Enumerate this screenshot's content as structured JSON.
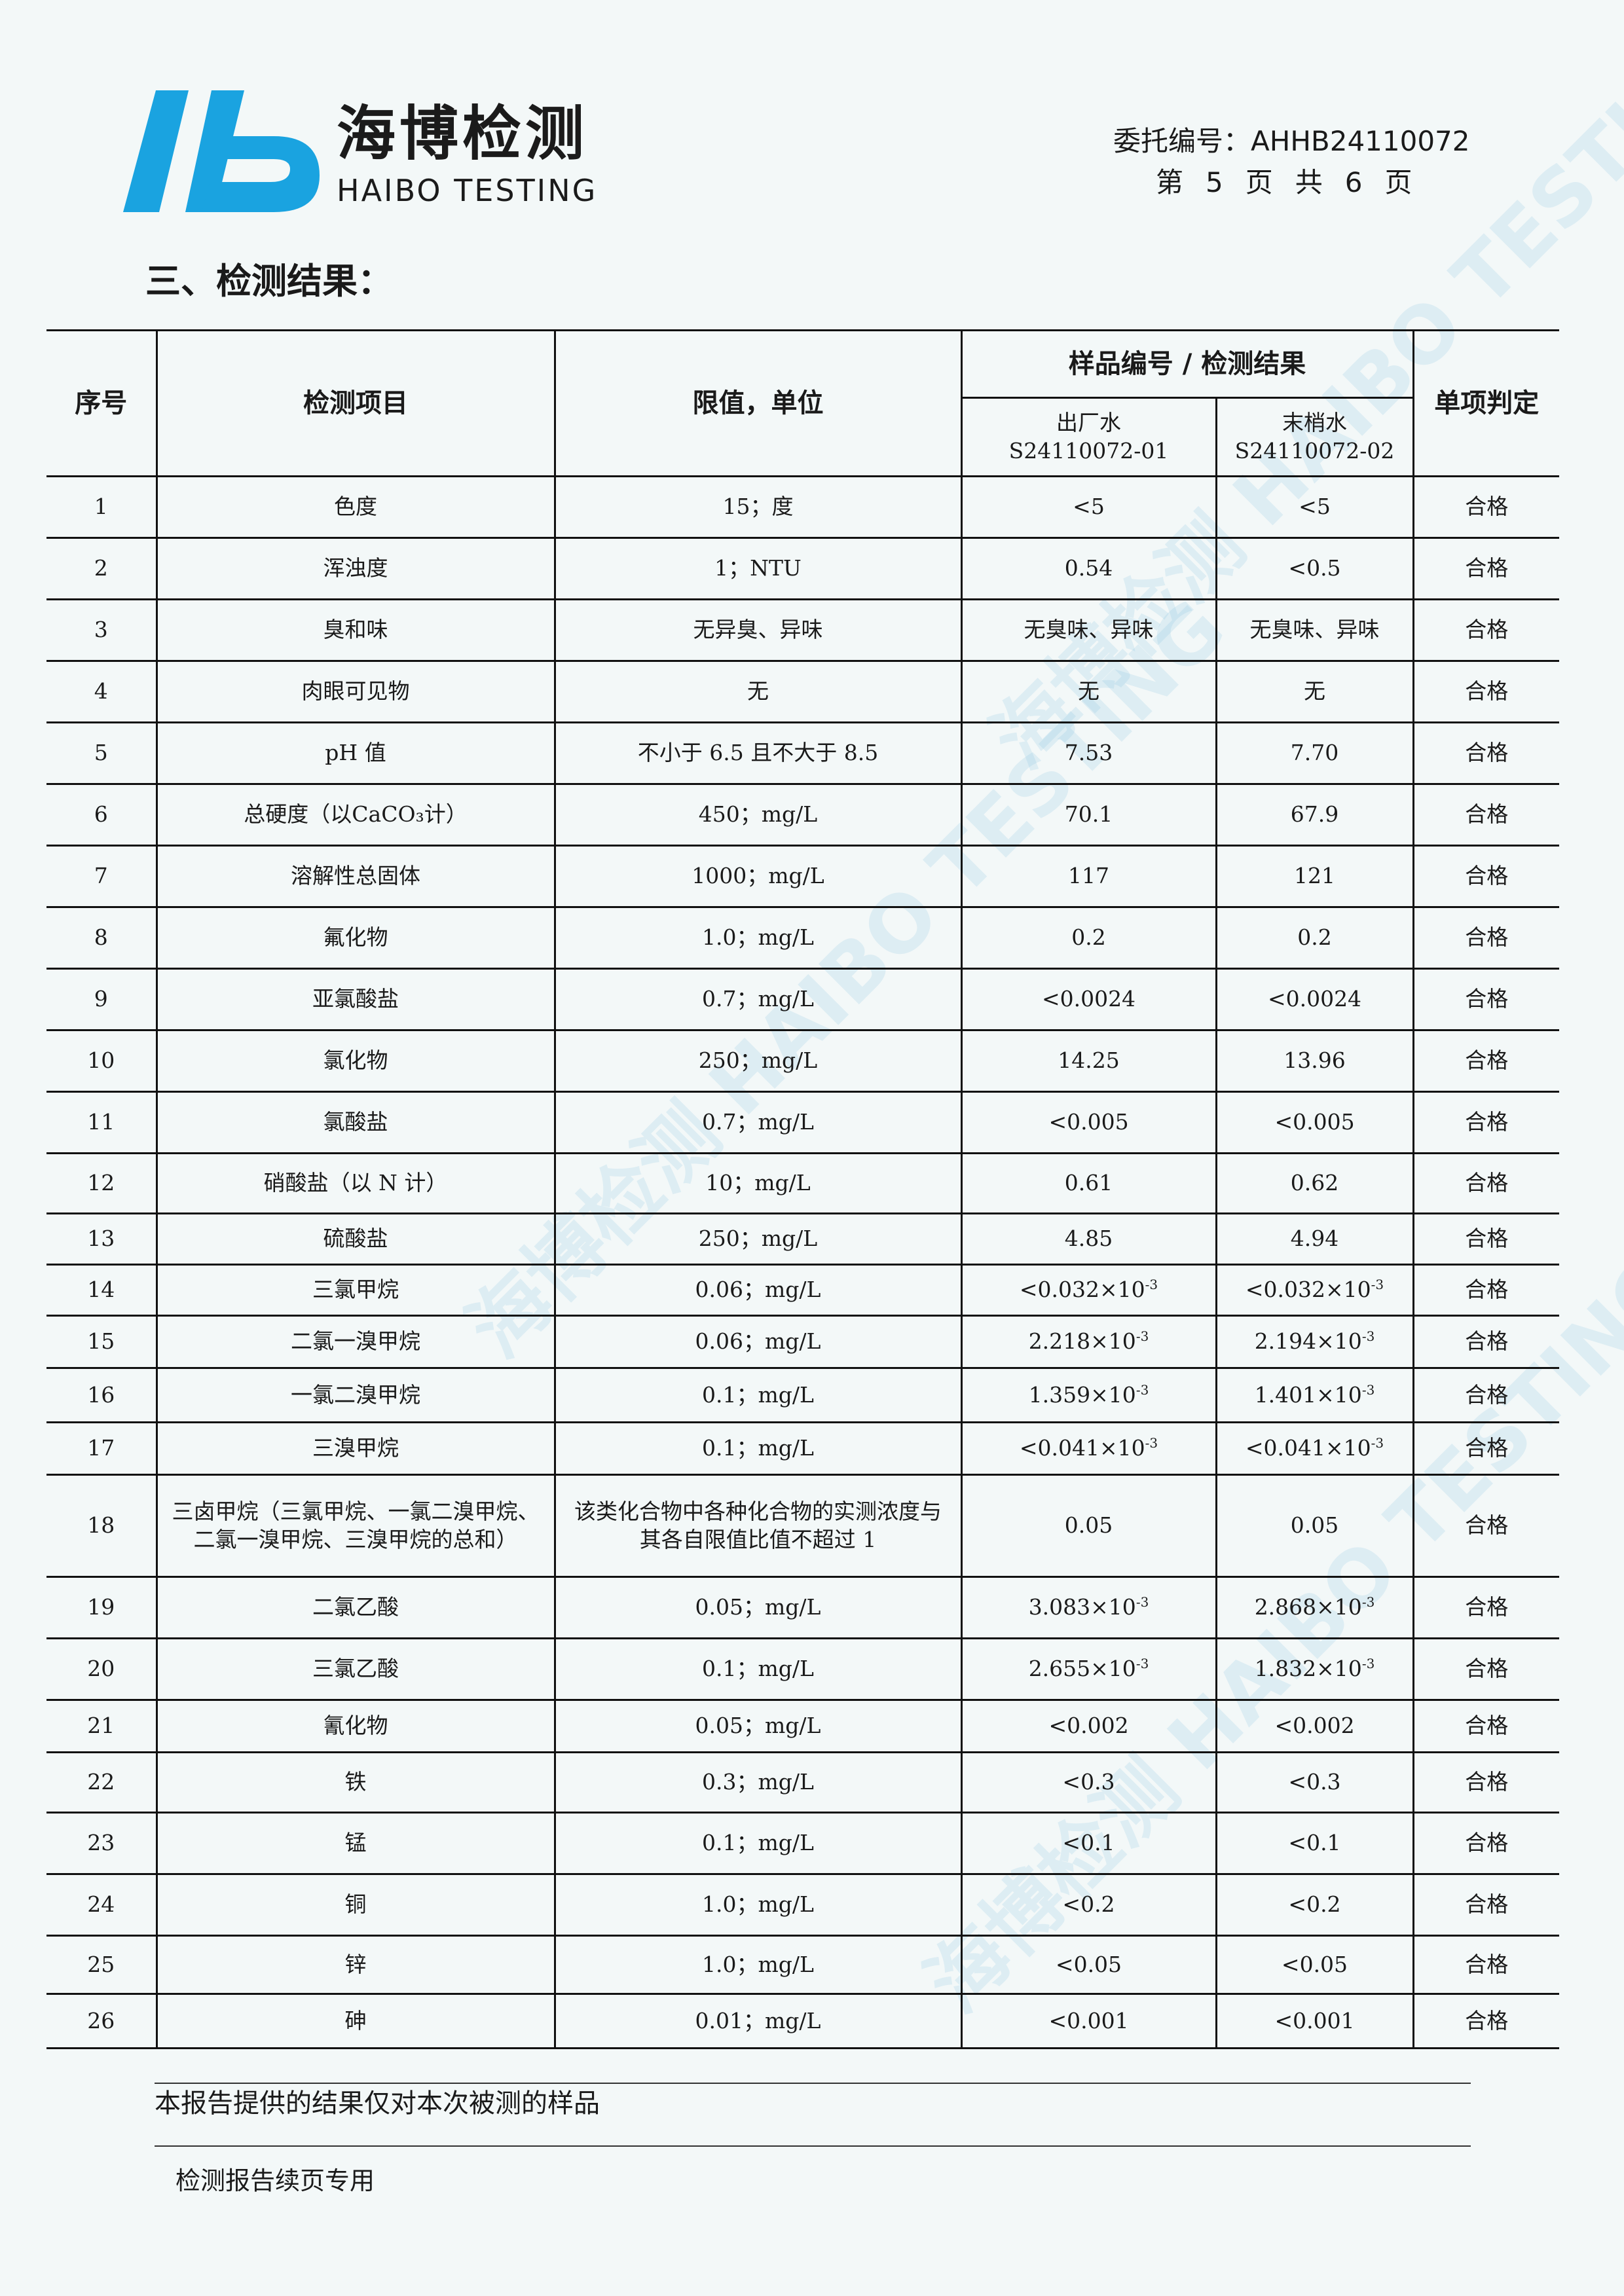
{
  "header": {
    "logo_cn": "海博检测",
    "logo_en": "HAIBO TESTING",
    "logo_color": "#1aa3e0",
    "ref_label": "委托编号：",
    "ref_no": "AHHB24110072",
    "page": {
      "pre": "第",
      "current": "5",
      "mid": "页",
      "total_pre": "共",
      "total": "6",
      "post": "页"
    }
  },
  "section_title": "三、检测结果：",
  "table": {
    "headers": {
      "no": "序号",
      "item": "检测项目",
      "limit": "限值，单位",
      "result_group": "样品编号 / 检测结果",
      "s1_name": "出厂水",
      "s1_id": "S24110072-01",
      "s2_name": "末梢水",
      "s2_id": "S24110072-02",
      "verdict": "单项判定"
    },
    "rows": [
      {
        "no": "1",
        "item": "色度",
        "limit": "15；度",
        "r1": "<5",
        "r2": "<5",
        "verdict": "合格"
      },
      {
        "no": "2",
        "item": "浑浊度",
        "limit": "1；NTU",
        "r1": "0.54",
        "r2": "<0.5",
        "verdict": "合格"
      },
      {
        "no": "3",
        "item": "臭和味",
        "limit": "无异臭、异味",
        "r1": "无臭味、异味",
        "r2": "无臭味、异味",
        "verdict": "合格"
      },
      {
        "no": "4",
        "item": "肉眼可见物",
        "limit": "无",
        "r1": "无",
        "r2": "无",
        "verdict": "合格"
      },
      {
        "no": "5",
        "item": "pH 值",
        "limit": "不小于 6.5 且不大于 8.5",
        "r1": "7.53",
        "r2": "7.70",
        "verdict": "合格"
      },
      {
        "no": "6",
        "item": "总硬度（以CaCO₃计）",
        "limit": "450；mg/L",
        "r1": "70.1",
        "r2": "67.9",
        "verdict": "合格"
      },
      {
        "no": "7",
        "item": "溶解性总固体",
        "limit": "1000；mg/L",
        "r1": "117",
        "r2": "121",
        "verdict": "合格"
      },
      {
        "no": "8",
        "item": "氟化物",
        "limit": "1.0；mg/L",
        "r1": "0.2",
        "r2": "0.2",
        "verdict": "合格"
      },
      {
        "no": "9",
        "item": "亚氯酸盐",
        "limit": "0.7；mg/L",
        "r1": "<0.0024",
        "r2": "<0.0024",
        "verdict": "合格"
      },
      {
        "no": "10",
        "item": "氯化物",
        "limit": "250；mg/L",
        "r1": "14.25",
        "r2": "13.96",
        "verdict": "合格"
      },
      {
        "no": "11",
        "item": "氯酸盐",
        "limit": "0.7；mg/L",
        "r1": "<0.005",
        "r2": "<0.005",
        "verdict": "合格"
      },
      {
        "no": "12",
        "item": "硝酸盐（以 N 计）",
        "limit": "10；mg/L",
        "r1": "0.61",
        "r2": "0.62",
        "verdict": "合格"
      },
      {
        "no": "13",
        "item": "硫酸盐",
        "limit": "250；mg/L",
        "r1": "4.85",
        "r2": "4.94",
        "verdict": "合格"
      },
      {
        "no": "14",
        "item": "三氯甲烷",
        "limit": "0.06；mg/L",
        "r1": "<0.032×10",
        "r1_exp": "-3",
        "r2": "<0.032×10",
        "r2_exp": "-3",
        "verdict": "合格"
      },
      {
        "no": "15",
        "item": "二氯一溴甲烷",
        "limit": "0.06；mg/L",
        "r1": "2.218×10",
        "r1_exp": "-3",
        "r2": "2.194×10",
        "r2_exp": "-3",
        "verdict": "合格"
      },
      {
        "no": "16",
        "item": "一氯二溴甲烷",
        "limit": "0.1；mg/L",
        "r1": "1.359×10",
        "r1_exp": "-3",
        "r2": "1.401×10",
        "r2_exp": "-3",
        "verdict": "合格"
      },
      {
        "no": "17",
        "item": "三溴甲烷",
        "limit": "0.1；mg/L",
        "r1": "<0.041×10",
        "r1_exp": "-3",
        "r2": "<0.041×10",
        "r2_exp": "-3",
        "verdict": "合格"
      },
      {
        "no": "18",
        "item": "三卤甲烷（三氯甲烷、一氯二溴甲烷、二氯一溴甲烷、三溴甲烷的总和）",
        "limit": "该类化合物中各种化合物的实测浓度与其各自限值比值不超过 1",
        "r1": "0.05",
        "r2": "0.05",
        "verdict": "合格"
      },
      {
        "no": "19",
        "item": "二氯乙酸",
        "limit": "0.05；mg/L",
        "r1": "3.083×10",
        "r1_exp": "-3",
        "r2": "2.868×10",
        "r2_exp": "-3",
        "verdict": "合格"
      },
      {
        "no": "20",
        "item": "三氯乙酸",
        "limit": "0.1；mg/L",
        "r1": "2.655×10",
        "r1_exp": "-3",
        "r2": "1.832×10",
        "r2_exp": "-3",
        "verdict": "合格"
      },
      {
        "no": "21",
        "item": "氰化物",
        "limit": "0.05；mg/L",
        "r1": "<0.002",
        "r2": "<0.002",
        "verdict": "合格"
      },
      {
        "no": "22",
        "item": "铁",
        "limit": "0.3；mg/L",
        "r1": "<0.3",
        "r2": "<0.3",
        "verdict": "合格"
      },
      {
        "no": "23",
        "item": "锰",
        "limit": "0.1；mg/L",
        "r1": "<0.1",
        "r2": "<0.1",
        "verdict": "合格"
      },
      {
        "no": "24",
        "item": "铜",
        "limit": "1.0；mg/L",
        "r1": "<0.2",
        "r2": "<0.2",
        "verdict": "合格"
      },
      {
        "no": "25",
        "item": "锌",
        "limit": "1.0；mg/L",
        "r1": "<0.05",
        "r2": "<0.05",
        "verdict": "合格"
      },
      {
        "no": "26",
        "item": "砷",
        "limit": "0.01；mg/L",
        "r1": "<0.001",
        "r2": "<0.001",
        "verdict": "合格"
      }
    ]
  },
  "note": "本报告提供的结果仅对本次被测的样品",
  "footer": "检测报告续页专用"
}
